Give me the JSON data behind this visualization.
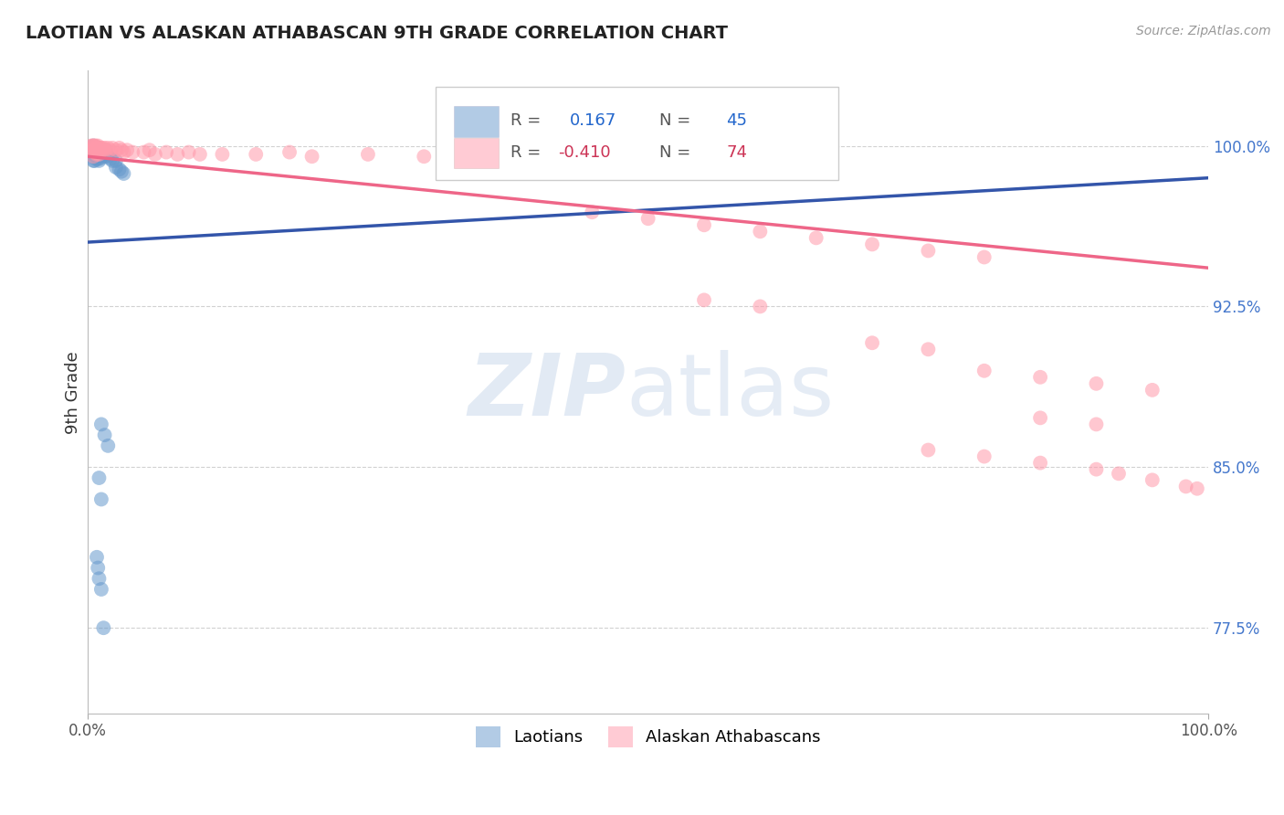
{
  "title": "LAOTIAN VS ALASKAN ATHABASCAN 9TH GRADE CORRELATION CHART",
  "source": "Source: ZipAtlas.com",
  "ylabel": "9th Grade",
  "xmin": 0.0,
  "xmax": 1.0,
  "ymin": 0.735,
  "ymax": 1.035,
  "yticks": [
    0.775,
    0.85,
    0.925,
    1.0
  ],
  "ytick_labels": [
    "77.5%",
    "85.0%",
    "92.5%",
    "100.0%"
  ],
  "blue_R": 0.167,
  "blue_N": 45,
  "pink_R": -0.41,
  "pink_N": 74,
  "legend_label_blue": "Laotians",
  "legend_label_pink": "Alaskan Athabascans",
  "blue_color": "#6699CC",
  "pink_color": "#FF99AA",
  "blue_line_color": "#3355AA",
  "pink_line_color": "#EE6688",
  "blue_line_x0": 0.0,
  "blue_line_y0": 0.955,
  "blue_line_x1": 1.0,
  "blue_line_y1": 0.985,
  "pink_line_x0": 0.0,
  "pink_line_y0": 0.995,
  "pink_line_x1": 1.0,
  "pink_line_y1": 0.943,
  "blue_points_x": [
    0.005,
    0.005,
    0.005,
    0.005,
    0.006,
    0.006,
    0.006,
    0.007,
    0.007,
    0.008,
    0.008,
    0.009,
    0.009,
    0.009,
    0.01,
    0.01,
    0.01,
    0.011,
    0.011,
    0.012,
    0.012,
    0.013,
    0.014,
    0.015,
    0.015,
    0.016,
    0.017,
    0.018,
    0.02,
    0.022,
    0.025,
    0.025,
    0.028,
    0.03,
    0.032,
    0.012,
    0.015,
    0.018,
    0.01,
    0.012,
    0.008,
    0.009,
    0.01,
    0.012,
    0.014
  ],
  "blue_points_y": [
    1.0,
    0.998,
    0.996,
    0.993,
    0.999,
    0.996,
    0.993,
    0.998,
    0.994,
    0.998,
    0.995,
    0.999,
    0.997,
    0.994,
    0.998,
    0.996,
    0.993,
    0.997,
    0.994,
    0.998,
    0.995,
    0.997,
    0.996,
    0.998,
    0.995,
    0.997,
    0.996,
    0.995,
    0.994,
    0.993,
    0.993,
    0.99,
    0.989,
    0.988,
    0.987,
    0.87,
    0.865,
    0.86,
    0.845,
    0.835,
    0.808,
    0.803,
    0.798,
    0.793,
    0.775
  ],
  "pink_points_x": [
    0.003,
    0.004,
    0.004,
    0.005,
    0.005,
    0.005,
    0.006,
    0.006,
    0.007,
    0.007,
    0.008,
    0.008,
    0.009,
    0.009,
    0.01,
    0.01,
    0.011,
    0.012,
    0.013,
    0.014,
    0.015,
    0.016,
    0.018,
    0.02,
    0.022,
    0.025,
    0.028,
    0.03,
    0.032,
    0.035,
    0.04,
    0.05,
    0.055,
    0.06,
    0.07,
    0.08,
    0.09,
    0.1,
    0.12,
    0.15,
    0.18,
    0.2,
    0.25,
    0.3,
    0.35,
    0.4,
    0.45,
    0.5,
    0.55,
    0.6,
    0.65,
    0.7,
    0.75,
    0.8,
    0.55,
    0.6,
    0.7,
    0.75,
    0.8,
    0.85,
    0.9,
    0.95,
    0.85,
    0.9,
    0.75,
    0.8,
    0.85,
    0.9,
    0.92,
    0.95,
    0.98,
    0.99
  ],
  "pink_points_y": [
    1.0,
    1.0,
    0.998,
    1.0,
    0.998,
    0.995,
    1.0,
    0.997,
    1.0,
    0.997,
    0.999,
    0.996,
    1.0,
    0.997,
    0.999,
    0.996,
    0.999,
    0.998,
    0.999,
    0.998,
    0.999,
    0.998,
    0.999,
    0.998,
    0.999,
    0.998,
    0.999,
    0.998,
    0.997,
    0.998,
    0.997,
    0.997,
    0.998,
    0.996,
    0.997,
    0.996,
    0.997,
    0.996,
    0.996,
    0.996,
    0.997,
    0.995,
    0.996,
    0.995,
    0.996,
    0.995,
    0.969,
    0.966,
    0.963,
    0.96,
    0.957,
    0.954,
    0.951,
    0.948,
    0.928,
    0.925,
    0.908,
    0.905,
    0.895,
    0.892,
    0.889,
    0.886,
    0.873,
    0.87,
    0.858,
    0.855,
    0.852,
    0.849,
    0.847,
    0.844,
    0.841,
    0.84
  ]
}
